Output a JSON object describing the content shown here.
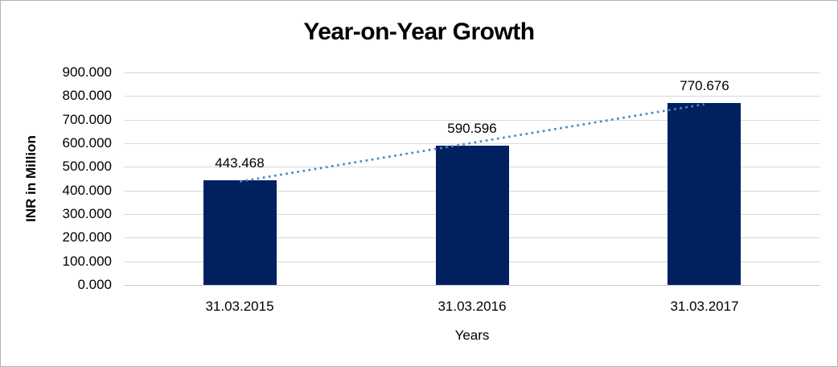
{
  "chart_data": {
    "type": "bar",
    "title": "Year-on-Year Growth",
    "xlabel": "Years",
    "ylabel": "INR in Million",
    "categories": [
      "31.03.2015",
      "31.03.2016",
      "31.03.2017"
    ],
    "values": [
      443.468,
      590.596,
      770.676
    ],
    "data_labels": [
      "443.468",
      "590.596",
      "770.676"
    ],
    "ylim": [
      0,
      900
    ],
    "ytick_step": 100,
    "ytick_decimals": 3,
    "grid": true,
    "legend_position": "none",
    "trendline": {
      "type": "linear",
      "style": "dotted"
    },
    "colors": {
      "bar": "#002060",
      "trendline": "#4f86c8",
      "gridline": "#d9d9d9",
      "axis_line": "#c9c9c9",
      "text": "#000000",
      "border": "#b2b2b2",
      "background": "#ffffff"
    }
  }
}
